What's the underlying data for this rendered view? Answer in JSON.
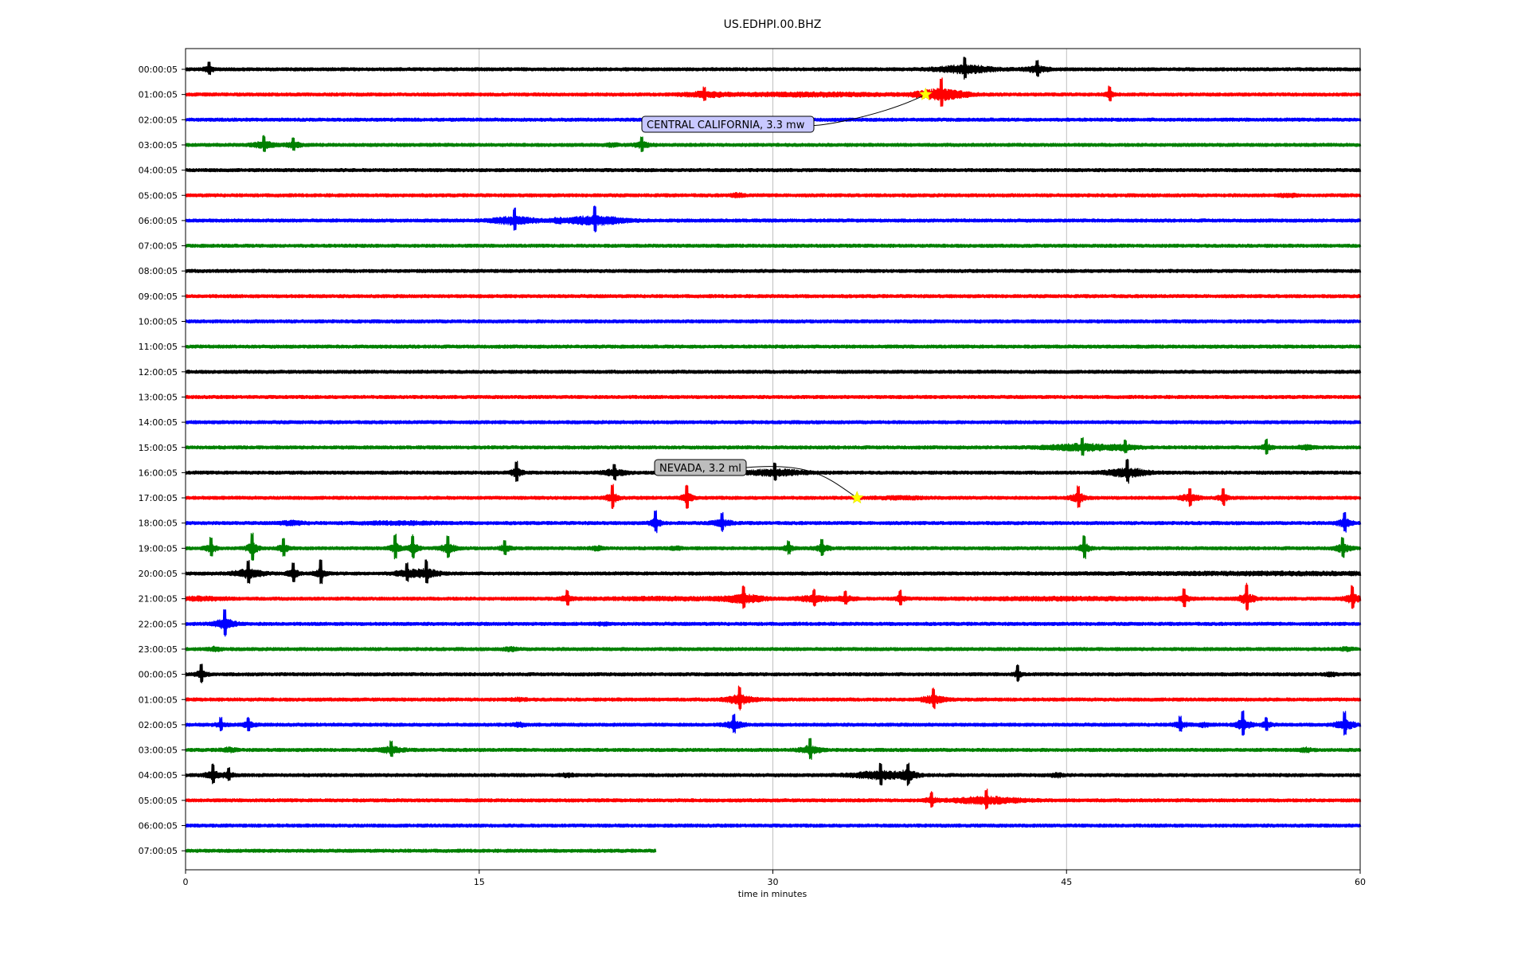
{
  "chart_data": {
    "type": "line",
    "title": "US.EDHPI.00.BHZ",
    "xlabel": "time in minutes",
    "xlim": [
      0,
      60
    ],
    "xticks": [
      0,
      15,
      30,
      45,
      60
    ],
    "grid": true,
    "row_labels": [
      "00:00:05",
      "01:00:05",
      "02:00:05",
      "03:00:05",
      "04:00:05",
      "05:00:05",
      "06:00:05",
      "07:00:05",
      "08:00:05",
      "09:00:05",
      "10:00:05",
      "11:00:05",
      "12:00:05",
      "13:00:05",
      "14:00:05",
      "15:00:05",
      "16:00:05",
      "17:00:05",
      "18:00:05",
      "19:00:05",
      "20:00:05",
      "21:00:05",
      "22:00:05",
      "23:00:05",
      "00:00:05",
      "01:00:05",
      "02:00:05",
      "03:00:05",
      "04:00:05",
      "05:00:05",
      "06:00:05",
      "07:00:05"
    ],
    "series_colors": [
      "#000000",
      "#ff0000",
      "#0000ff",
      "#008000"
    ],
    "last_row_end_minutes": 24,
    "events": [
      {
        "label": "CENTRAL CALIFORNIA, 3.3 mw",
        "row": 1,
        "minute": 37.8,
        "box_color": "#c8c8ff"
      },
      {
        "label": "NEVADA, 3.2 ml",
        "row": 17,
        "minute": 34.3,
        "box_color": "#bdbdbd"
      }
    ],
    "bursts": [
      [
        [
          39.8,
          11,
          1.4
        ],
        [
          43.5,
          8,
          0.6
        ],
        [
          1.2,
          6,
          0.3
        ]
      ],
      [
        [
          38.6,
          16,
          1.2
        ],
        [
          26.5,
          6,
          1.0
        ],
        [
          47.2,
          7,
          0.3
        ],
        [
          32,
          4,
          4.0
        ]
      ],
      [],
      [
        [
          4.0,
          8,
          0.6
        ],
        [
          5.5,
          6,
          0.4
        ],
        [
          23.3,
          7,
          0.4
        ],
        [
          21.8,
          4,
          0.3
        ]
      ],
      [],
      [
        [
          28.2,
          5,
          0.3
        ],
        [
          56.3,
          4,
          0.4
        ]
      ],
      [
        [
          16.8,
          11,
          1.1
        ],
        [
          20.9,
          13,
          1.4
        ],
        [
          19.0,
          4,
          0.3
        ]
      ],
      [],
      [],
      [],
      [],
      [],
      [],
      [],
      [],
      [
        [
          45.8,
          9,
          1.8
        ],
        [
          48.0,
          6,
          0.6
        ],
        [
          55.2,
          7,
          0.3
        ],
        [
          57.2,
          5,
          0.4
        ]
      ],
      [
        [
          16.9,
          10,
          0.3
        ],
        [
          21.9,
          8,
          0.6
        ],
        [
          30.1,
          8,
          1.5
        ],
        [
          48.1,
          12,
          1.0
        ]
      ],
      [
        [
          21.8,
          12,
          0.3
        ],
        [
          25.6,
          12,
          0.3
        ],
        [
          45.6,
          11,
          0.4
        ],
        [
          51.3,
          9,
          0.5
        ],
        [
          53.0,
          8,
          0.3
        ],
        [
          36.5,
          3,
          1.2
        ]
      ],
      [
        [
          5.4,
          5,
          0.6
        ],
        [
          24.0,
          11,
          0.3
        ],
        [
          27.4,
          9,
          0.5
        ],
        [
          59.2,
          10,
          0.4
        ],
        [
          11.0,
          3,
          2.0
        ]
      ],
      [
        [
          1.3,
          10,
          0.3
        ],
        [
          3.4,
          14,
          0.3
        ],
        [
          5.0,
          9,
          0.3
        ],
        [
          10.7,
          13,
          0.3
        ],
        [
          11.6,
          12,
          0.3
        ],
        [
          13.4,
          11,
          0.4
        ],
        [
          16.3,
          7,
          0.3
        ],
        [
          21.0,
          5,
          0.3
        ],
        [
          25.0,
          4,
          0.3
        ],
        [
          30.8,
          6,
          0.3
        ],
        [
          32.5,
          8,
          0.4
        ],
        [
          45.9,
          12,
          0.3
        ],
        [
          59.1,
          10,
          0.4
        ]
      ],
      [
        [
          3.2,
          12,
          0.7
        ],
        [
          5.5,
          10,
          0.3
        ],
        [
          6.9,
          12,
          0.3
        ],
        [
          11.3,
          9,
          0.6
        ],
        [
          12.3,
          12,
          0.6
        ],
        [
          56.0,
          3,
          8.0
        ]
      ],
      [
        [
          0.7,
          4,
          1.3
        ],
        [
          19.5,
          7,
          0.3
        ],
        [
          28.5,
          11,
          0.9
        ],
        [
          32.1,
          8,
          0.8
        ],
        [
          33.7,
          6,
          0.5
        ],
        [
          36.5,
          7,
          0.3
        ],
        [
          51.0,
          9,
          0.3
        ],
        [
          54.2,
          14,
          0.4
        ],
        [
          59.6,
          12,
          0.4
        ],
        [
          45.0,
          3,
          5.0
        ],
        [
          25.0,
          3,
          4.0
        ]
      ],
      [
        [
          2.0,
          14,
          0.5
        ],
        [
          21.3,
          3,
          0.3
        ]
      ],
      [
        [
          1.5,
          5,
          0.3
        ],
        [
          16.6,
          5,
          0.3
        ],
        [
          59.3,
          4,
          0.3
        ]
      ],
      [
        [
          0.8,
          9,
          0.3
        ],
        [
          42.5,
          8,
          0.2
        ],
        [
          58.5,
          4,
          0.3
        ]
      ],
      [
        [
          28.3,
          12,
          0.7
        ],
        [
          38.2,
          10,
          0.6
        ],
        [
          17.0,
          3,
          0.4
        ]
      ],
      [
        [
          1.8,
          6,
          0.3
        ],
        [
          3.2,
          6,
          0.4
        ],
        [
          17.0,
          5,
          0.3
        ],
        [
          28.0,
          9,
          0.5
        ],
        [
          50.8,
          7,
          0.4
        ],
        [
          52.0,
          5,
          0.3
        ],
        [
          54.0,
          13,
          0.4
        ],
        [
          55.2,
          6,
          0.3
        ],
        [
          59.2,
          12,
          0.5
        ]
      ],
      [
        [
          2.2,
          5,
          0.4
        ],
        [
          10.5,
          8,
          0.6
        ],
        [
          31.9,
          11,
          0.5
        ],
        [
          57.2,
          5,
          0.3
        ]
      ],
      [
        [
          1.4,
          10,
          0.4
        ],
        [
          2.2,
          6,
          0.3
        ],
        [
          19.5,
          4,
          0.3
        ],
        [
          35.5,
          11,
          1.4
        ],
        [
          36.9,
          10,
          0.4
        ],
        [
          44.5,
          5,
          0.3
        ]
      ],
      [
        [
          38.1,
          7,
          0.3
        ],
        [
          40.9,
          10,
          1.6
        ]
      ],
      [],
      []
    ]
  }
}
